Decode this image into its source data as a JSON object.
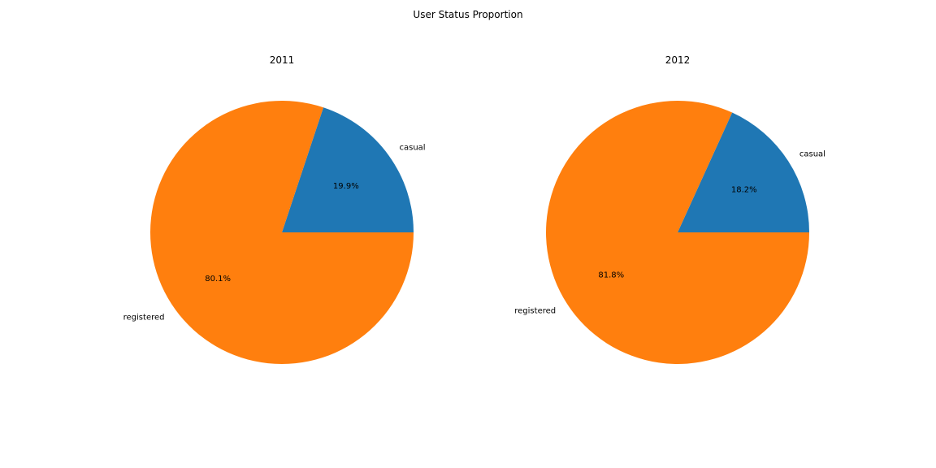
{
  "chart_data": {
    "type": "pie",
    "title": "User Status Proportion",
    "colors": [
      "#1f77b4",
      "#ff7f0e"
    ],
    "charts": [
      {
        "title": "2011",
        "labels": [
          "casual",
          "registered"
        ],
        "values": [
          19.9,
          80.1
        ],
        "value_labels": [
          "19.9%",
          "80.1%"
        ]
      },
      {
        "title": "2012",
        "labels": [
          "casual",
          "registered"
        ],
        "values": [
          18.2,
          81.8
        ],
        "value_labels": [
          "18.2%",
          "81.8%"
        ]
      }
    ]
  }
}
